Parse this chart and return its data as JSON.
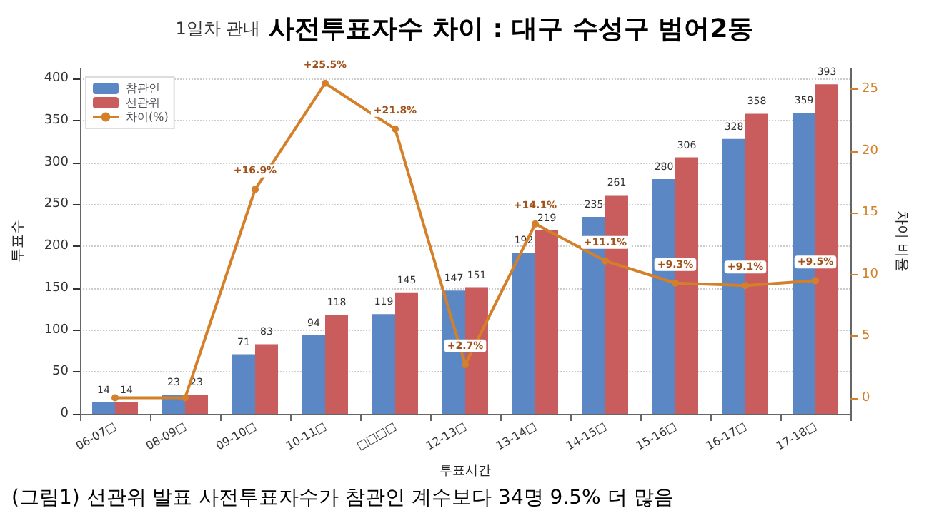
{
  "chart_data": {
    "type": "bar",
    "title": "사전투표자수 차이 : 대구 수성구 범어2동",
    "subtitle": "1일차 관내",
    "xlabel": "투표시간",
    "ylabel": "투표수",
    "y2label": "차이 비율",
    "annotations": [
      "(그림1) 선관위 발표 사전투표자수가 참관인 계수보다 34명 9.5% 더 많음"
    ],
    "categories": [
      "06-07□",
      "08-09□",
      "09-10□",
      "10-11□",
      "□□□□",
      "12-13□",
      "13-14□",
      "14-15□",
      "15-16□",
      "16-17□",
      "17-18□"
    ],
    "series": [
      {
        "name": "참관인",
        "color": "#5b87c5",
        "values": [
          14,
          23,
          71,
          94,
          119,
          147,
          192,
          235,
          280,
          328,
          359
        ]
      },
      {
        "name": "선관위",
        "color": "#c95c5c",
        "values": [
          14,
          23,
          83,
          118,
          145,
          151,
          219,
          261,
          306,
          358,
          393
        ]
      },
      {
        "name": "차이(%)",
        "type": "line",
        "axis": "y2",
        "color": "#d4802a",
        "marker": "circle",
        "values": [
          0,
          0,
          16.9,
          25.5,
          21.8,
          2.7,
          14.1,
          11.1,
          9.3,
          9.1,
          9.5
        ],
        "value_labels": [
          null,
          null,
          "+16.9%",
          "+25.5%",
          "+21.8%",
          "+2.7%",
          "+14.1%",
          "+11.1%",
          "+9.3%",
          "+9.1%",
          "+9.5%"
        ]
      }
    ],
    "data_labels": true,
    "ylim": [
      0,
      412
    ],
    "yticks": [
      0,
      50,
      100,
      150,
      200,
      250,
      300,
      350,
      400
    ],
    "y2lim": [
      -1.3,
      26.7
    ],
    "y2ticks": [
      0,
      5,
      10,
      15,
      20,
      25
    ],
    "grid": "y",
    "legend": "top left"
  }
}
